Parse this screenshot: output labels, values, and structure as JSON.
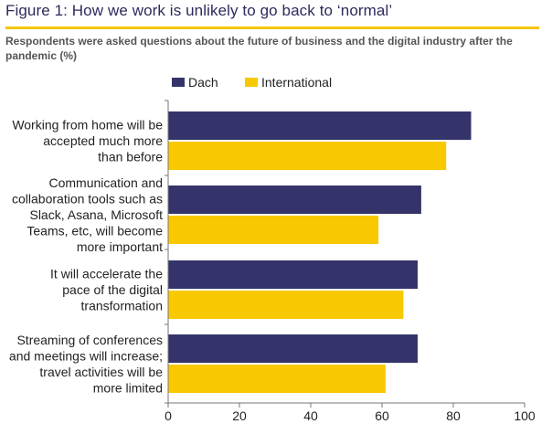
{
  "title": "Figure 1: How we work is unlikely to go back to ‘normal’",
  "subtitle": "Respondents were asked questions about the future of business and the digital industry after the pandemic (%)",
  "colors": {
    "dach": "#34346a",
    "international": "#f8c800",
    "rule": "#f5c400"
  },
  "chart_data": {
    "type": "bar",
    "orientation": "horizontal",
    "categories": [
      [
        "Working from home will be",
        "accepted much more",
        "than before"
      ],
      [
        "Communication and",
        "collaboration tools such as",
        "Slack, Asana, Microsoft",
        "Teams, etc, will become",
        "more important"
      ],
      [
        "It will accelerate the",
        "pace of the digital",
        "transformation"
      ],
      [
        "Streaming of conferences",
        "and meetings will increase;",
        "travel activities will be",
        "more limited"
      ]
    ],
    "series": [
      {
        "name": "Dach",
        "values": [
          85,
          71,
          70,
          70
        ]
      },
      {
        "name": "International",
        "values": [
          78,
          59,
          66,
          61
        ]
      }
    ],
    "xlim": [
      0,
      100
    ],
    "xticks": [
      "0",
      "20",
      "40",
      "60",
      "80",
      "100"
    ],
    "legend": "top-left",
    "grid": false
  }
}
